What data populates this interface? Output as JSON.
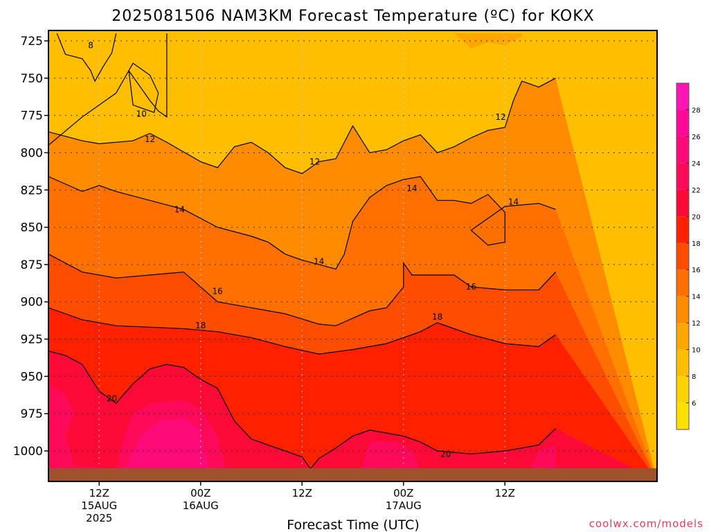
{
  "chart_data": {
    "type": "heatmap",
    "title": "2025081506 NAM3KM Forecast Temperature (ºC) for KOKX",
    "xlabel": "Forecast Time (UTC)",
    "ylabel": "",
    "credit": "coolwx.com/models",
    "x_range": [
      "2025-08-15 06Z",
      "2025-08-18 06Z"
    ],
    "y_range_hPa": [
      1020,
      720
    ],
    "y_ticks": [
      725,
      750,
      775,
      800,
      825,
      850,
      875,
      900,
      925,
      950,
      975,
      1000
    ],
    "y_tick_labels": [
      "725",
      "750",
      "775",
      "800",
      "825",
      "850",
      "875",
      "900",
      "925",
      "950",
      "975",
      "1000"
    ],
    "x_ticks": [
      {
        "hour": 6,
        "l1": "12Z",
        "l2": "15AUG",
        "l3": "2025"
      },
      {
        "hour": 18,
        "l1": "00Z",
        "l2": "16AUG",
        "l3": ""
      },
      {
        "hour": 30,
        "l1": "12Z",
        "l2": "",
        "l3": ""
      },
      {
        "hour": 42,
        "l1": "00Z",
        "l2": "17AUG",
        "l3": ""
      },
      {
        "hour": 54,
        "l1": "12Z",
        "l2": "",
        "l3": ""
      }
    ],
    "colorbar": {
      "ticks": [
        6,
        8,
        10,
        12,
        14,
        16,
        18,
        20,
        22,
        24,
        26,
        28
      ],
      "levels": [
        {
          "min": 4,
          "max": 6,
          "color": "#ffe000"
        },
        {
          "min": 6,
          "max": 8,
          "color": "#ffd200"
        },
        {
          "min": 8,
          "max": 10,
          "color": "#ffbf00"
        },
        {
          "min": 10,
          "max": 12,
          "color": "#ffa600"
        },
        {
          "min": 12,
          "max": 14,
          "color": "#ff8c00"
        },
        {
          "min": 14,
          "max": 16,
          "color": "#ff7000"
        },
        {
          "min": 16,
          "max": 18,
          "color": "#ff4d00"
        },
        {
          "min": 18,
          "max": 20,
          "color": "#ff2000"
        },
        {
          "min": 20,
          "max": 22,
          "color": "#ff0a38"
        },
        {
          "min": 22,
          "max": 24,
          "color": "#ff0a5a"
        },
        {
          "min": 24,
          "max": 26,
          "color": "#ff0a78"
        },
        {
          "min": 26,
          "max": 28,
          "color": "#ff0a96"
        },
        {
          "min": 28,
          "max": 30,
          "color": "#ff14b4"
        }
      ]
    },
    "ground_color": "#a0522d",
    "series": [
      {
        "level": 10,
        "label": "10",
        "points": [
          [
            0,
            795
          ],
          [
            4,
            776
          ],
          [
            6,
            768
          ],
          [
            8,
            760
          ],
          [
            10,
            740
          ],
          [
            12,
            748
          ],
          [
            13,
            760
          ],
          [
            12.5,
            773
          ],
          [
            11,
            770
          ],
          [
            10,
            768
          ],
          [
            9.5,
            745
          ],
          [
            12,
            765
          ],
          [
            13,
            772
          ],
          [
            14,
            776
          ],
          [
            14,
            720
          ]
        ],
        "labels": [
          {
            "x": 11,
            "p": 774
          }
        ]
      },
      {
        "level": 8,
        "label": "8",
        "points": [
          [
            1,
            720
          ],
          [
            2,
            734
          ],
          [
            4,
            737
          ],
          [
            5,
            745
          ],
          [
            5.5,
            752
          ],
          [
            6.5,
            742
          ],
          [
            7.5,
            733
          ],
          [
            8,
            720
          ]
        ],
        "labels": [
          {
            "x": 5,
            "p": 728
          }
        ]
      },
      {
        "level": 12,
        "label": "12",
        "points": [
          [
            0,
            786
          ],
          [
            4,
            792
          ],
          [
            6,
            794
          ],
          [
            10,
            792
          ],
          [
            12,
            787
          ],
          [
            14,
            793
          ],
          [
            18,
            806
          ],
          [
            20,
            810
          ],
          [
            22,
            796
          ],
          [
            24,
            793
          ],
          [
            26,
            800
          ],
          [
            28,
            810
          ],
          [
            30,
            814
          ],
          [
            32,
            806
          ],
          [
            34,
            804
          ],
          [
            36,
            782
          ],
          [
            38,
            800
          ],
          [
            40,
            798
          ],
          [
            42,
            792
          ],
          [
            44,
            788
          ],
          [
            46,
            800
          ],
          [
            48,
            796
          ],
          [
            50,
            790
          ],
          [
            52,
            785
          ],
          [
            54,
            783
          ],
          [
            55,
            765
          ],
          [
            56,
            752
          ],
          [
            58,
            756
          ],
          [
            60,
            750
          ]
        ],
        "labels": [
          {
            "x": 12,
            "p": 791
          },
          {
            "x": 31.5,
            "p": 806
          },
          {
            "x": 53.5,
            "p": 776
          }
        ]
      },
      {
        "level": 14,
        "label": "14",
        "points": [
          [
            0,
            816
          ],
          [
            4,
            826
          ],
          [
            6,
            822
          ],
          [
            8,
            826
          ],
          [
            12,
            832
          ],
          [
            16,
            838
          ],
          [
            20,
            850
          ],
          [
            24,
            856
          ],
          [
            26,
            860
          ],
          [
            28,
            868
          ],
          [
            30,
            872
          ],
          [
            32,
            875
          ],
          [
            34,
            878
          ],
          [
            35,
            868
          ],
          [
            36,
            846
          ],
          [
            38,
            830
          ],
          [
            40,
            822
          ],
          [
            42,
            818
          ],
          [
            44,
            816
          ],
          [
            46,
            832
          ],
          [
            48,
            832
          ],
          [
            50,
            834
          ],
          [
            52,
            828
          ],
          [
            54,
            840
          ],
          [
            54,
            860
          ],
          [
            52,
            862
          ],
          [
            50,
            852
          ],
          [
            54,
            836
          ],
          [
            58,
            834
          ],
          [
            60,
            838
          ]
        ],
        "labels": [
          {
            "x": 15.5,
            "p": 838
          },
          {
            "x": 32,
            "p": 873
          },
          {
            "x": 43,
            "p": 824
          },
          {
            "x": 55,
            "p": 833
          }
        ]
      },
      {
        "level": 16,
        "label": "16",
        "points": [
          [
            0,
            868
          ],
          [
            4,
            880
          ],
          [
            8,
            884
          ],
          [
            12,
            882
          ],
          [
            16,
            880
          ],
          [
            18,
            890
          ],
          [
            20,
            900
          ],
          [
            24,
            904
          ],
          [
            28,
            908
          ],
          [
            32,
            915
          ],
          [
            34,
            916
          ],
          [
            38,
            906
          ],
          [
            40,
            904
          ],
          [
            42,
            890
          ],
          [
            42,
            874
          ],
          [
            43,
            882
          ],
          [
            46,
            882
          ],
          [
            48,
            882
          ],
          [
            50,
            890
          ],
          [
            54,
            892
          ],
          [
            58,
            892
          ],
          [
            60,
            880
          ]
        ],
        "labels": [
          {
            "x": 20,
            "p": 893
          },
          {
            "x": 50,
            "p": 890
          }
        ]
      },
      {
        "level": 18,
        "label": "18",
        "points": [
          [
            0,
            904
          ],
          [
            4,
            912
          ],
          [
            8,
            916
          ],
          [
            12,
            917
          ],
          [
            16,
            918
          ],
          [
            20,
            920
          ],
          [
            24,
            924
          ],
          [
            28,
            930
          ],
          [
            32,
            935
          ],
          [
            36,
            932
          ],
          [
            40,
            928
          ],
          [
            44,
            920
          ],
          [
            46,
            914
          ],
          [
            48,
            918
          ],
          [
            50,
            922
          ],
          [
            54,
            928
          ],
          [
            58,
            930
          ],
          [
            60,
            922
          ]
        ],
        "labels": [
          {
            "x": 18,
            "p": 916
          },
          {
            "x": 46,
            "p": 910
          }
        ]
      },
      {
        "level": 20,
        "label": "20",
        "points": [
          [
            0,
            933
          ],
          [
            2,
            936
          ],
          [
            4,
            942
          ],
          [
            6,
            960
          ],
          [
            8,
            968
          ],
          [
            10,
            955
          ],
          [
            12,
            945
          ],
          [
            14,
            942
          ],
          [
            16,
            944
          ],
          [
            18,
            952
          ],
          [
            20,
            958
          ],
          [
            22,
            980
          ],
          [
            24,
            992
          ],
          [
            26,
            996
          ],
          [
            28,
            1000
          ],
          [
            30,
            1004
          ],
          [
            31,
            1012
          ],
          [
            32,
            1005
          ],
          [
            34,
            998
          ],
          [
            36,
            990
          ],
          [
            38,
            986
          ],
          [
            42,
            990
          ],
          [
            44,
            994
          ],
          [
            46,
            1000
          ],
          [
            50,
            1002
          ],
          [
            54,
            1000
          ],
          [
            58,
            996
          ],
          [
            60,
            985
          ]
        ],
        "labels": [
          {
            "x": 7.5,
            "p": 965
          },
          {
            "x": 47,
            "p": 1002
          }
        ]
      }
    ]
  }
}
